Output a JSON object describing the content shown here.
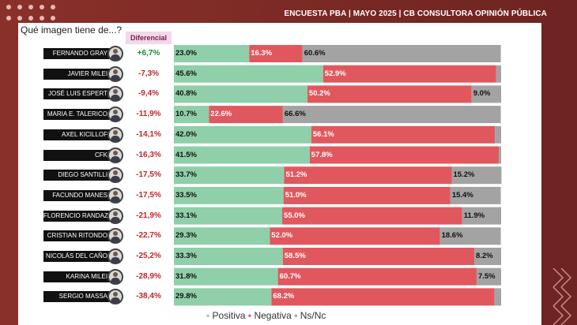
{
  "header": {
    "title": "ENCUESTA PBA | MAYO 2025 | CB CONSULTORA OPINIÓN PÚBLICA"
  },
  "question": "Qué imagen tiene de...?",
  "diff_header": "Diferencial",
  "colors": {
    "positive": "#8fcfa9",
    "negative": "#e0585d",
    "nsnc": "#a3a3a3",
    "diff_pos": "#1f8a3a",
    "diff_neg": "#c0262c"
  },
  "legend": {
    "positive": "Positiva",
    "negative": "Negativa",
    "nsnc": "Ns/Nc",
    "sep": "•"
  },
  "chart_data": {
    "type": "bar",
    "orientation": "horizontal-stacked-100",
    "categories": [
      "FERNANDO GRAY",
      "JAVIER MILEI",
      "JOSÉ LUIS ESPERT",
      "MARIA E. TALERICO",
      "AXEL KICILLOF",
      "CFK",
      "DIEGO SANTILLI",
      "FACUNDO MANES",
      "FLORENCIO RANDAZZO",
      "CRISTIAN RITONDO",
      "NICOLÁS DEL CAÑO",
      "KARINA MILEI",
      "SERGIO MASSA"
    ],
    "diferencial": [
      "+6,7%",
      "-7,3%",
      "-9,4%",
      "-11,9%",
      "-14,1%",
      "-16,3%",
      "-17,5%",
      "-17,5%",
      "-21,9%",
      "-22,7%",
      "-25,2%",
      "-28,9%",
      "-38,4%"
    ],
    "series": [
      {
        "name": "Positiva",
        "values": [
          23.0,
          45.6,
          40.8,
          10.7,
          42.0,
          41.5,
          33.7,
          33.5,
          33.1,
          29.3,
          33.3,
          31.8,
          29.8
        ],
        "labels": [
          "23.0%",
          "45.6%",
          "40.8%",
          "10.7%",
          "42.0%",
          "41.5%",
          "33.7%",
          "33.5%",
          "33.1%",
          "29.3%",
          "33.3%",
          "31.8%",
          "29.8%"
        ]
      },
      {
        "name": "Negativa",
        "values": [
          16.3,
          52.9,
          50.2,
          22.6,
          56.1,
          57.8,
          51.2,
          51.0,
          55.0,
          52.0,
          58.5,
          60.7,
          68.2
        ],
        "labels": [
          "16.3%",
          "52.9%",
          "50.2%",
          "22.6%",
          "56.1%",
          "57.8%",
          "51.2%",
          "51.0%",
          "55.0%",
          "52.0%",
          "58.5%",
          "60.7%",
          "68.2%"
        ]
      },
      {
        "name": "Ns/Nc",
        "values": [
          60.6,
          1.5,
          9.0,
          66.6,
          1.9,
          0.7,
          15.2,
          15.4,
          11.9,
          18.6,
          8.2,
          7.5,
          2.0
        ],
        "labels": [
          "60.6%",
          "",
          "9.0%",
          "66.6%",
          "",
          "",
          "15.2%",
          "15.4%",
          "11.9%",
          "18.6%",
          "8.2%",
          "7.5%",
          ""
        ]
      }
    ]
  }
}
